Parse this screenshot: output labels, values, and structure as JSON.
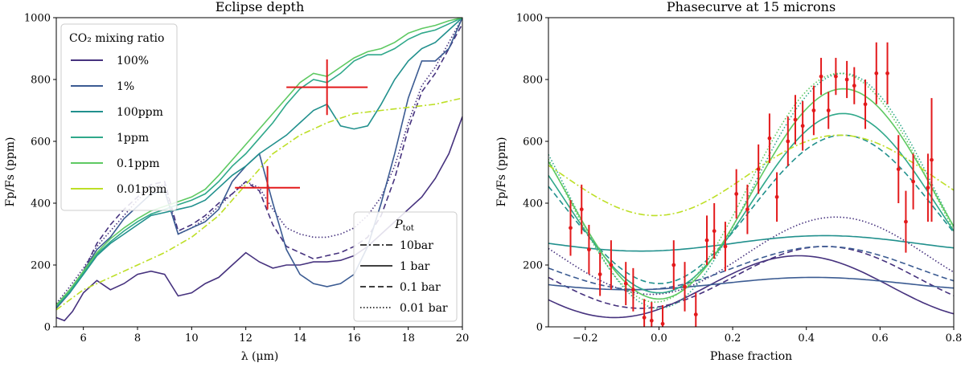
{
  "chart_data": [
    {
      "type": "line",
      "title": "Eclipse depth",
      "xlabel": "λ (μm)",
      "ylabel": "Fp/Fs (ppm)",
      "xlim": [
        5,
        20
      ],
      "ylim": [
        0,
        1000
      ],
      "xticks": [
        6,
        8,
        10,
        12,
        14,
        16,
        18,
        20
      ],
      "yticks": [
        0,
        200,
        400,
        600,
        800,
        1000
      ],
      "grid": false,
      "legend_color_title": "CO₂ mixing ratio",
      "legend_color_placement": "top-left",
      "legend_style_title": "P_tot",
      "legend_style_placement": "bottom-right",
      "color_legend": [
        {
          "label": "100%",
          "color": "#46327e"
        },
        {
          "label": "1%",
          "color": "#3b5b92"
        },
        {
          "label": "100ppm",
          "color": "#21908d"
        },
        {
          "label": "1ppm",
          "color": "#2fa88a"
        },
        {
          "label": "0.1ppm",
          "color": "#5ec962"
        },
        {
          "label": "0.01ppm",
          "color": "#bddf26"
        }
      ],
      "style_legend": [
        {
          "label": "10bar",
          "dash": "dashdot"
        },
        {
          "label": "1 bar",
          "dash": "solid"
        },
        {
          "label": "0.1 bar",
          "dash": "dashed"
        },
        {
          "label": "0.01 bar",
          "dash": "dotted"
        }
      ],
      "observations": [
        {
          "x": 12.8,
          "y": 450,
          "xerr": 1.2,
          "yerr": 70,
          "color": "#e31a1c"
        },
        {
          "x": 15.0,
          "y": 775,
          "xerr": 1.5,
          "yerr": 90,
          "color": "#e31a1c"
        }
      ],
      "series": [
        {
          "color": "#46327e",
          "dash": "solid",
          "x": [
            5,
            5.3,
            5.6,
            6,
            6.5,
            7,
            7.5,
            8,
            8.5,
            9,
            9.5,
            10,
            10.5,
            11,
            11.5,
            12,
            12.5,
            13,
            13.5,
            14,
            14.5,
            15,
            15.5,
            16,
            16.5,
            17,
            17.5,
            18,
            18.5,
            19,
            19.5,
            20
          ],
          "y": [
            30,
            20,
            50,
            110,
            150,
            120,
            140,
            170,
            180,
            170,
            100,
            110,
            140,
            160,
            200,
            240,
            210,
            190,
            200,
            200,
            210,
            210,
            215,
            230,
            260,
            300,
            340,
            380,
            420,
            480,
            560,
            680
          ]
        },
        {
          "color": "#46327e",
          "dash": "dashed",
          "x": [
            5,
            5.5,
            6,
            6.5,
            7,
            7.5,
            8,
            8.5,
            9,
            9.5,
            10,
            10.5,
            11,
            11.5,
            12,
            12.5,
            13,
            13.5,
            14,
            14.5,
            15,
            15.5,
            16,
            16.5,
            17,
            17.5,
            18,
            18.5,
            19,
            19.5,
            20
          ],
          "y": [
            70,
            120,
            180,
            270,
            330,
            380,
            420,
            460,
            470,
            310,
            330,
            360,
            400,
            430,
            470,
            440,
            330,
            260,
            240,
            220,
            230,
            240,
            260,
            290,
            360,
            480,
            640,
            760,
            820,
            900,
            980
          ]
        },
        {
          "color": "#46327e",
          "dash": "dotted",
          "x": [
            5,
            5.5,
            6,
            6.5,
            7,
            7.5,
            8,
            8.5,
            9,
            9.5,
            10,
            10.5,
            11,
            11.5,
            12,
            12.5,
            13,
            13.5,
            14,
            14.5,
            15,
            15.5,
            16,
            16.5,
            17,
            17.5,
            18,
            18.5,
            19,
            19.5,
            20
          ],
          "y": [
            75,
            130,
            190,
            260,
            310,
            360,
            410,
            450,
            460,
            300,
            320,
            350,
            390,
            430,
            470,
            450,
            380,
            320,
            300,
            290,
            290,
            300,
            320,
            360,
            420,
            520,
            660,
            780,
            840,
            920,
            1000
          ]
        },
        {
          "color": "#3b5b92",
          "dash": "solid",
          "x": [
            5,
            5.5,
            6,
            6.5,
            7,
            7.5,
            8,
            8.5,
            9,
            9.5,
            10,
            10.5,
            11,
            11.5,
            12,
            12.5,
            13,
            13.5,
            14,
            14.5,
            15,
            15.5,
            16,
            16.5,
            17,
            17.5,
            18,
            18.5,
            19,
            19.5,
            20
          ],
          "y": [
            60,
            110,
            180,
            250,
            290,
            350,
            390,
            430,
            440,
            300,
            320,
            340,
            380,
            470,
            520,
            560,
            400,
            250,
            170,
            140,
            130,
            140,
            170,
            260,
            400,
            560,
            740,
            860,
            860,
            900,
            1000
          ]
        },
        {
          "color": "#21908d",
          "dash": "solid",
          "x": [
            5,
            5.5,
            6,
            6.5,
            7,
            7.5,
            8,
            8.5,
            9,
            9.5,
            10,
            10.5,
            11,
            11.5,
            12,
            12.5,
            13,
            13.5,
            14,
            14.5,
            15,
            15.5,
            16,
            16.5,
            17,
            17.5,
            18,
            18.5,
            19,
            19.5,
            20
          ],
          "y": [
            65,
            110,
            170,
            230,
            270,
            300,
            330,
            360,
            370,
            380,
            390,
            410,
            450,
            490,
            520,
            560,
            590,
            620,
            660,
            700,
            720,
            650,
            640,
            650,
            720,
            800,
            860,
            900,
            920,
            960,
            1000
          ]
        },
        {
          "color": "#2fa88a",
          "dash": "solid",
          "x": [
            5,
            5.5,
            6,
            6.5,
            7,
            7.5,
            8,
            8.5,
            9,
            9.5,
            10,
            10.5,
            11,
            11.5,
            12,
            12.5,
            13,
            13.5,
            14,
            14.5,
            15,
            15.5,
            16,
            16.5,
            17,
            17.5,
            18,
            18.5,
            19,
            19.5,
            20
          ],
          "y": [
            65,
            115,
            175,
            235,
            275,
            310,
            340,
            365,
            380,
            395,
            410,
            430,
            470,
            520,
            560,
            610,
            660,
            720,
            770,
            800,
            790,
            820,
            860,
            880,
            880,
            900,
            930,
            950,
            960,
            980,
            1000
          ]
        },
        {
          "color": "#5ec962",
          "dash": "solid",
          "x": [
            5,
            5.5,
            6,
            6.5,
            7,
            7.5,
            8,
            8.5,
            9,
            9.5,
            10,
            10.5,
            11,
            11.5,
            12,
            12.5,
            13,
            13.5,
            14,
            14.5,
            15,
            15.5,
            16,
            16.5,
            17,
            17.5,
            18,
            18.5,
            19,
            19.5,
            20
          ],
          "y": [
            70,
            120,
            180,
            240,
            285,
            320,
            350,
            375,
            390,
            405,
            420,
            445,
            490,
            540,
            590,
            640,
            690,
            740,
            790,
            820,
            810,
            840,
            870,
            890,
            900,
            920,
            950,
            965,
            975,
            990,
            1000
          ]
        },
        {
          "color": "#bddf26",
          "dash": "dashdot",
          "x": [
            5,
            6,
            7,
            8,
            9,
            10,
            11,
            12,
            13,
            14,
            15,
            16,
            17,
            18,
            19,
            20
          ],
          "y": [
            55,
            120,
            160,
            200,
            240,
            290,
            360,
            460,
            560,
            620,
            660,
            690,
            700,
            710,
            720,
            740
          ]
        }
      ]
    },
    {
      "type": "line",
      "title": "Phasecurve at 15 microns",
      "xlabel": "Phase fraction",
      "ylabel": "Fp/Fs (ppm)",
      "xlim": [
        -0.3,
        0.8
      ],
      "ylim": [
        0,
        1000
      ],
      "xticks": [
        -0.2,
        0.0,
        0.2,
        0.4,
        0.6,
        0.8
      ],
      "yticks": [
        0,
        200,
        400,
        600,
        800,
        1000
      ],
      "grid": false,
      "series": [
        {
          "color": "#46327e",
          "dash": "solid",
          "mean": 130,
          "amp": 100,
          "peak": 0.38
        },
        {
          "color": "#46327e",
          "dash": "dashed",
          "mean": 160,
          "amp": 100,
          "peak": 0.45
        },
        {
          "color": "#46327e",
          "dash": "dotted",
          "mean": 230,
          "amp": 125,
          "peak": 0.48
        },
        {
          "color": "#3b5b92",
          "dash": "solid",
          "mean": 140,
          "amp": 20,
          "peak": 0.42
        },
        {
          "color": "#3b5b92",
          "dash": "dashed",
          "mean": 190,
          "amp": 70,
          "peak": 0.45
        },
        {
          "color": "#21908d",
          "dash": "solid",
          "mean": 270,
          "amp": 25,
          "peak": 0.45
        },
        {
          "color": "#21908d",
          "dash": "dashed",
          "mean": 380,
          "amp": 240,
          "peak": 0.5
        },
        {
          "color": "#2fa88a",
          "dash": "solid",
          "mean": 400,
          "amp": 290,
          "peak": 0.5
        },
        {
          "color": "#2fa88a",
          "dash": "dotted",
          "mean": 440,
          "amp": 380,
          "peak": 0.5
        },
        {
          "color": "#5ec962",
          "dash": "solid",
          "mean": 430,
          "amp": 340,
          "peak": 0.5
        },
        {
          "color": "#5ec962",
          "dash": "dotted",
          "mean": 450,
          "amp": 370,
          "peak": 0.49
        },
        {
          "color": "#bddf26",
          "dash": "dashdot",
          "mean": 490,
          "amp": 130,
          "peak": 0.49
        }
      ],
      "observations": {
        "color": "#e31a1c",
        "points": [
          {
            "x": -0.24,
            "y": 320,
            "e": 90
          },
          {
            "x": -0.21,
            "y": 380,
            "e": 80
          },
          {
            "x": -0.19,
            "y": 250,
            "e": 80
          },
          {
            "x": -0.16,
            "y": 170,
            "e": 70
          },
          {
            "x": -0.13,
            "y": 200,
            "e": 80
          },
          {
            "x": -0.09,
            "y": 140,
            "e": 70
          },
          {
            "x": -0.07,
            "y": 120,
            "e": 70
          },
          {
            "x": -0.04,
            "y": 30,
            "e": 60
          },
          {
            "x": -0.02,
            "y": 20,
            "e": 60
          },
          {
            "x": 0.01,
            "y": 10,
            "e": 60
          },
          {
            "x": 0.04,
            "y": 200,
            "e": 80
          },
          {
            "x": 0.07,
            "y": 130,
            "e": 80
          },
          {
            "x": 0.1,
            "y": 40,
            "e": 70
          },
          {
            "x": 0.13,
            "y": 280,
            "e": 80
          },
          {
            "x": 0.15,
            "y": 310,
            "e": 90
          },
          {
            "x": 0.18,
            "y": 260,
            "e": 80
          },
          {
            "x": 0.21,
            "y": 430,
            "e": 80
          },
          {
            "x": 0.24,
            "y": 380,
            "e": 80
          },
          {
            "x": 0.27,
            "y": 510,
            "e": 80
          },
          {
            "x": 0.3,
            "y": 610,
            "e": 80
          },
          {
            "x": 0.32,
            "y": 420,
            "e": 80
          },
          {
            "x": 0.35,
            "y": 600,
            "e": 80
          },
          {
            "x": 0.37,
            "y": 670,
            "e": 80
          },
          {
            "x": 0.39,
            "y": 650,
            "e": 80
          },
          {
            "x": 0.42,
            "y": 700,
            "e": 80
          },
          {
            "x": 0.44,
            "y": 810,
            "e": 60
          },
          {
            "x": 0.46,
            "y": 700,
            "e": 60
          },
          {
            "x": 0.48,
            "y": 810,
            "e": 60
          },
          {
            "x": 0.51,
            "y": 800,
            "e": 60
          },
          {
            "x": 0.53,
            "y": 780,
            "e": 60
          },
          {
            "x": 0.56,
            "y": 720,
            "e": 80
          },
          {
            "x": 0.59,
            "y": 820,
            "e": 100
          },
          {
            "x": 0.62,
            "y": 820,
            "e": 100
          },
          {
            "x": 0.65,
            "y": 510,
            "e": 110
          },
          {
            "x": 0.67,
            "y": 340,
            "e": 100
          },
          {
            "x": 0.69,
            "y": 470,
            "e": 90
          },
          {
            "x": 0.73,
            "y": 450,
            "e": 110
          },
          {
            "x": 0.74,
            "y": 540,
            "e": 200
          }
        ]
      }
    }
  ]
}
